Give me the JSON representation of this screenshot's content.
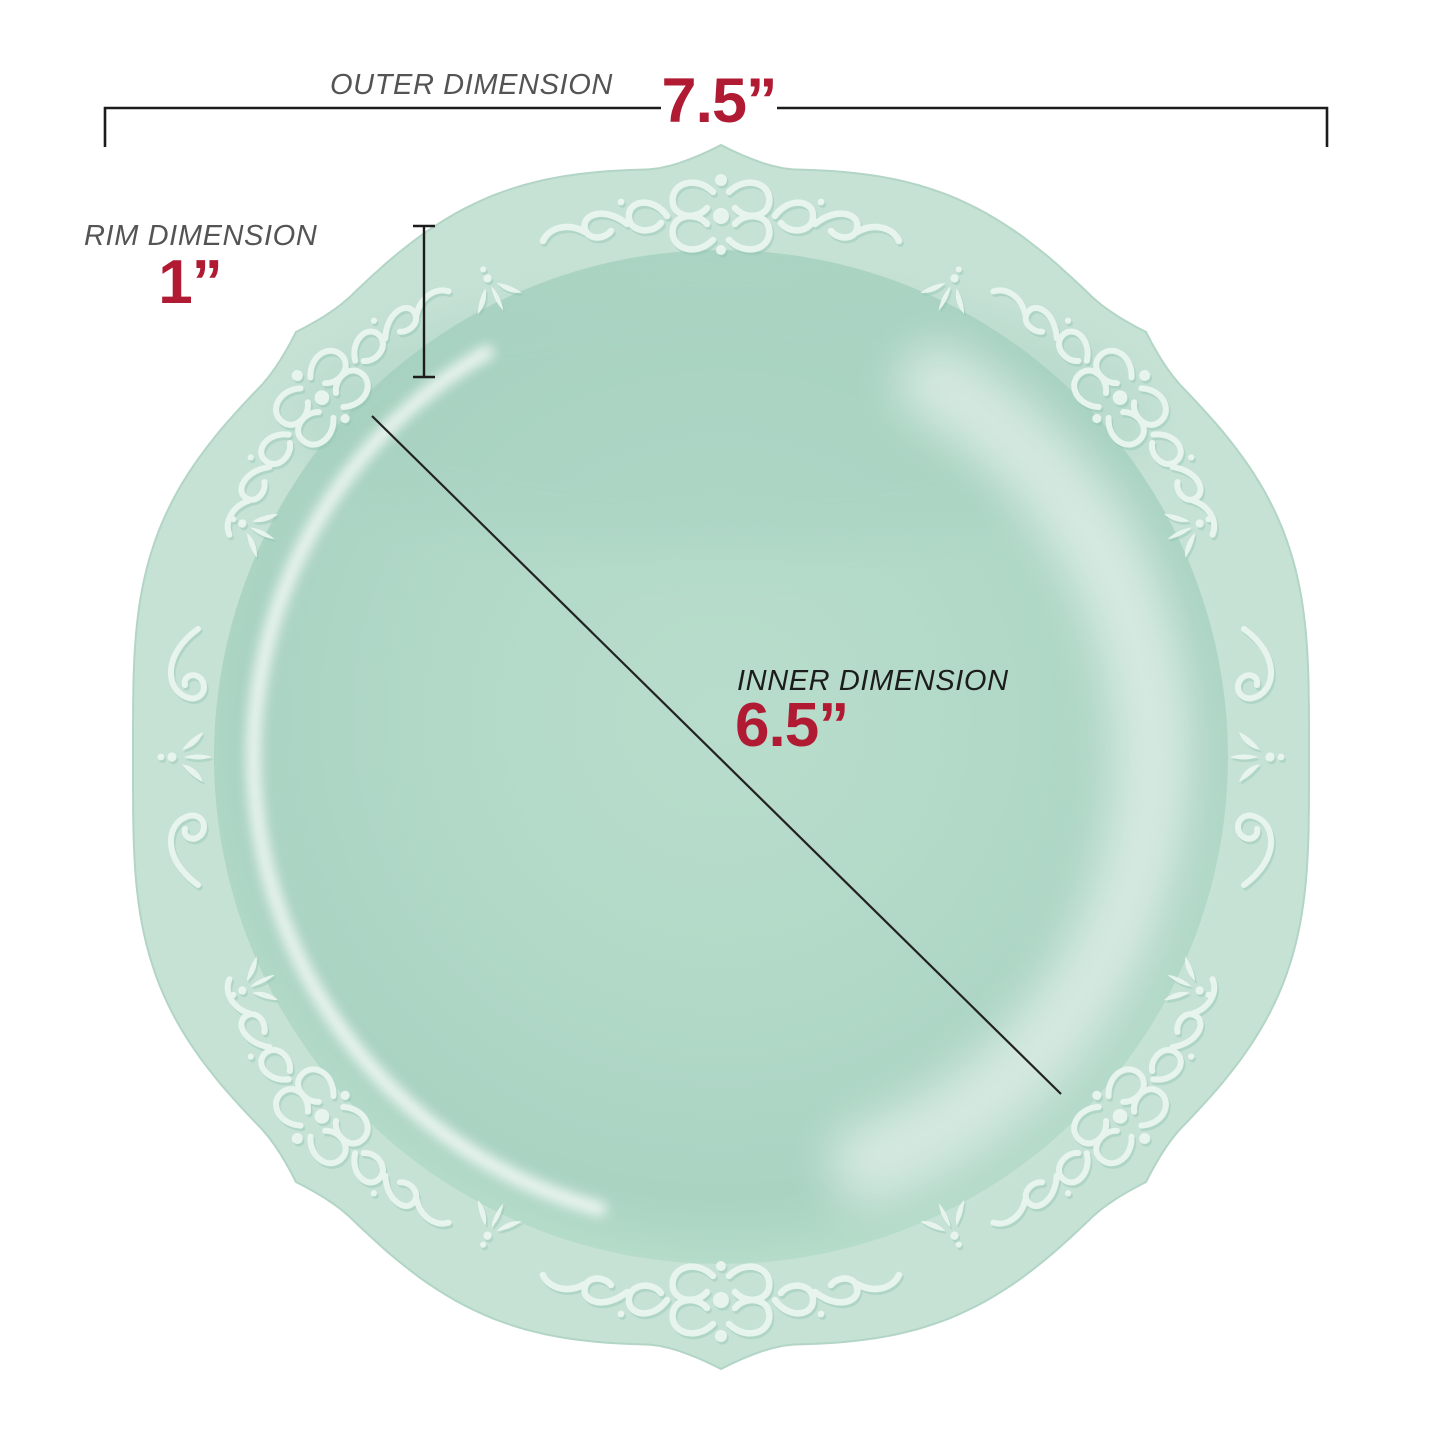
{
  "annotations": {
    "outer": {
      "label": "OUTER DIMENSION",
      "value": "7.5”"
    },
    "rim": {
      "label": "RIM DIMENSION",
      "value": "1”"
    },
    "inner": {
      "label": "INNER DIMENSION",
      "value": "6.5”"
    }
  },
  "colors": {
    "accent_red": "#b01b33",
    "label_gray": "#545454",
    "ink": "#1c1c1c",
    "line_color": "#1c1c1c",
    "plate_rim": "#c6e2d5",
    "plate_well": "#afd7c6",
    "emboss_light": "#eaf6f0",
    "emboss_shadow": "#8fc4b0",
    "background": "#ffffff"
  }
}
